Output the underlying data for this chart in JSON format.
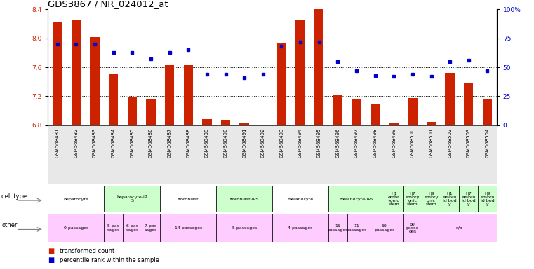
{
  "title": "GDS3867 / NR_024012_at",
  "gsm_labels": [
    "GSM568481",
    "GSM568482",
    "GSM568483",
    "GSM568484",
    "GSM568485",
    "GSM568486",
    "GSM568487",
    "GSM568488",
    "GSM568489",
    "GSM568490",
    "GSM568491",
    "GSM568492",
    "GSM568493",
    "GSM568494",
    "GSM568495",
    "GSM568496",
    "GSM568497",
    "GSM568498",
    "GSM568499",
    "GSM568500",
    "GSM568501",
    "GSM568502",
    "GSM568503",
    "GSM568504"
  ],
  "red_values": [
    8.22,
    8.26,
    8.02,
    7.5,
    7.18,
    7.16,
    7.63,
    7.63,
    6.88,
    6.87,
    6.83,
    6.78,
    7.93,
    8.26,
    8.4,
    7.22,
    7.16,
    7.1,
    6.83,
    7.17,
    6.84,
    7.52,
    7.38,
    7.16
  ],
  "blue_pct": [
    70,
    70,
    70,
    63,
    63,
    57,
    63,
    65,
    44,
    44,
    41,
    44,
    68,
    72,
    72,
    55,
    47,
    43,
    42,
    44,
    42,
    55,
    56,
    47
  ],
  "ylim_left": [
    6.8,
    8.4
  ],
  "yticks_left": [
    6.8,
    7.2,
    7.6,
    8.0,
    8.4
  ],
  "yticks_right": [
    0,
    25,
    50,
    75,
    100
  ],
  "ytick_labels_right": [
    "0",
    "25",
    "50",
    "75",
    "100%"
  ],
  "bar_color": "#cc2200",
  "dot_color": "#0000cc",
  "cell_type_groups": [
    {
      "label": "hepatocyte",
      "start": 0,
      "end": 2,
      "color": "#ffffff"
    },
    {
      "label": "hepatocyte-iP\nS",
      "start": 3,
      "end": 5,
      "color": "#ccffcc"
    },
    {
      "label": "fibroblast",
      "start": 6,
      "end": 8,
      "color": "#ffffff"
    },
    {
      "label": "fibroblast-IPS",
      "start": 9,
      "end": 11,
      "color": "#ccffcc"
    },
    {
      "label": "melanocyte",
      "start": 12,
      "end": 14,
      "color": "#ffffff"
    },
    {
      "label": "melanocyte-IPS",
      "start": 15,
      "end": 17,
      "color": "#ccffcc"
    },
    {
      "label": "H1\nembr\nyonic\nstem",
      "start": 18,
      "end": 18,
      "color": "#ccffcc"
    },
    {
      "label": "H7\nembry\nonic\nstem",
      "start": 19,
      "end": 19,
      "color": "#ccffcc"
    },
    {
      "label": "H9\nembry\nonic\nstem",
      "start": 20,
      "end": 20,
      "color": "#ccffcc"
    },
    {
      "label": "H1\nembro\nid bod\ny",
      "start": 21,
      "end": 21,
      "color": "#ccffcc"
    },
    {
      "label": "H7\nembro\nid bod\ny",
      "start": 22,
      "end": 22,
      "color": "#ccffcc"
    },
    {
      "label": "H9\nembro\nid bod\ny",
      "start": 23,
      "end": 23,
      "color": "#ccffcc"
    }
  ],
  "other_groups": [
    {
      "label": "0 passages",
      "start": 0,
      "end": 2,
      "color": "#ffccff"
    },
    {
      "label": "5 pas\nsages",
      "start": 3,
      "end": 3,
      "color": "#ffccff"
    },
    {
      "label": "6 pas\nsages",
      "start": 4,
      "end": 4,
      "color": "#ffccff"
    },
    {
      "label": "7 pas\nsages",
      "start": 5,
      "end": 5,
      "color": "#ffccff"
    },
    {
      "label": "14 passages",
      "start": 6,
      "end": 8,
      "color": "#ffccff"
    },
    {
      "label": "5 passages",
      "start": 9,
      "end": 11,
      "color": "#ffccff"
    },
    {
      "label": "4 passages",
      "start": 12,
      "end": 14,
      "color": "#ffccff"
    },
    {
      "label": "15\npassages",
      "start": 15,
      "end": 15,
      "color": "#ffccff"
    },
    {
      "label": "11\npassages",
      "start": 16,
      "end": 16,
      "color": "#ffccff"
    },
    {
      "label": "50\npassages",
      "start": 17,
      "end": 18,
      "color": "#ffccff"
    },
    {
      "label": "60\npassa\nges",
      "start": 19,
      "end": 19,
      "color": "#ffccff"
    },
    {
      "label": "n/a",
      "start": 20,
      "end": 23,
      "color": "#ffccff"
    }
  ],
  "fig_width": 7.61,
  "fig_height": 3.84,
  "dpi": 100
}
